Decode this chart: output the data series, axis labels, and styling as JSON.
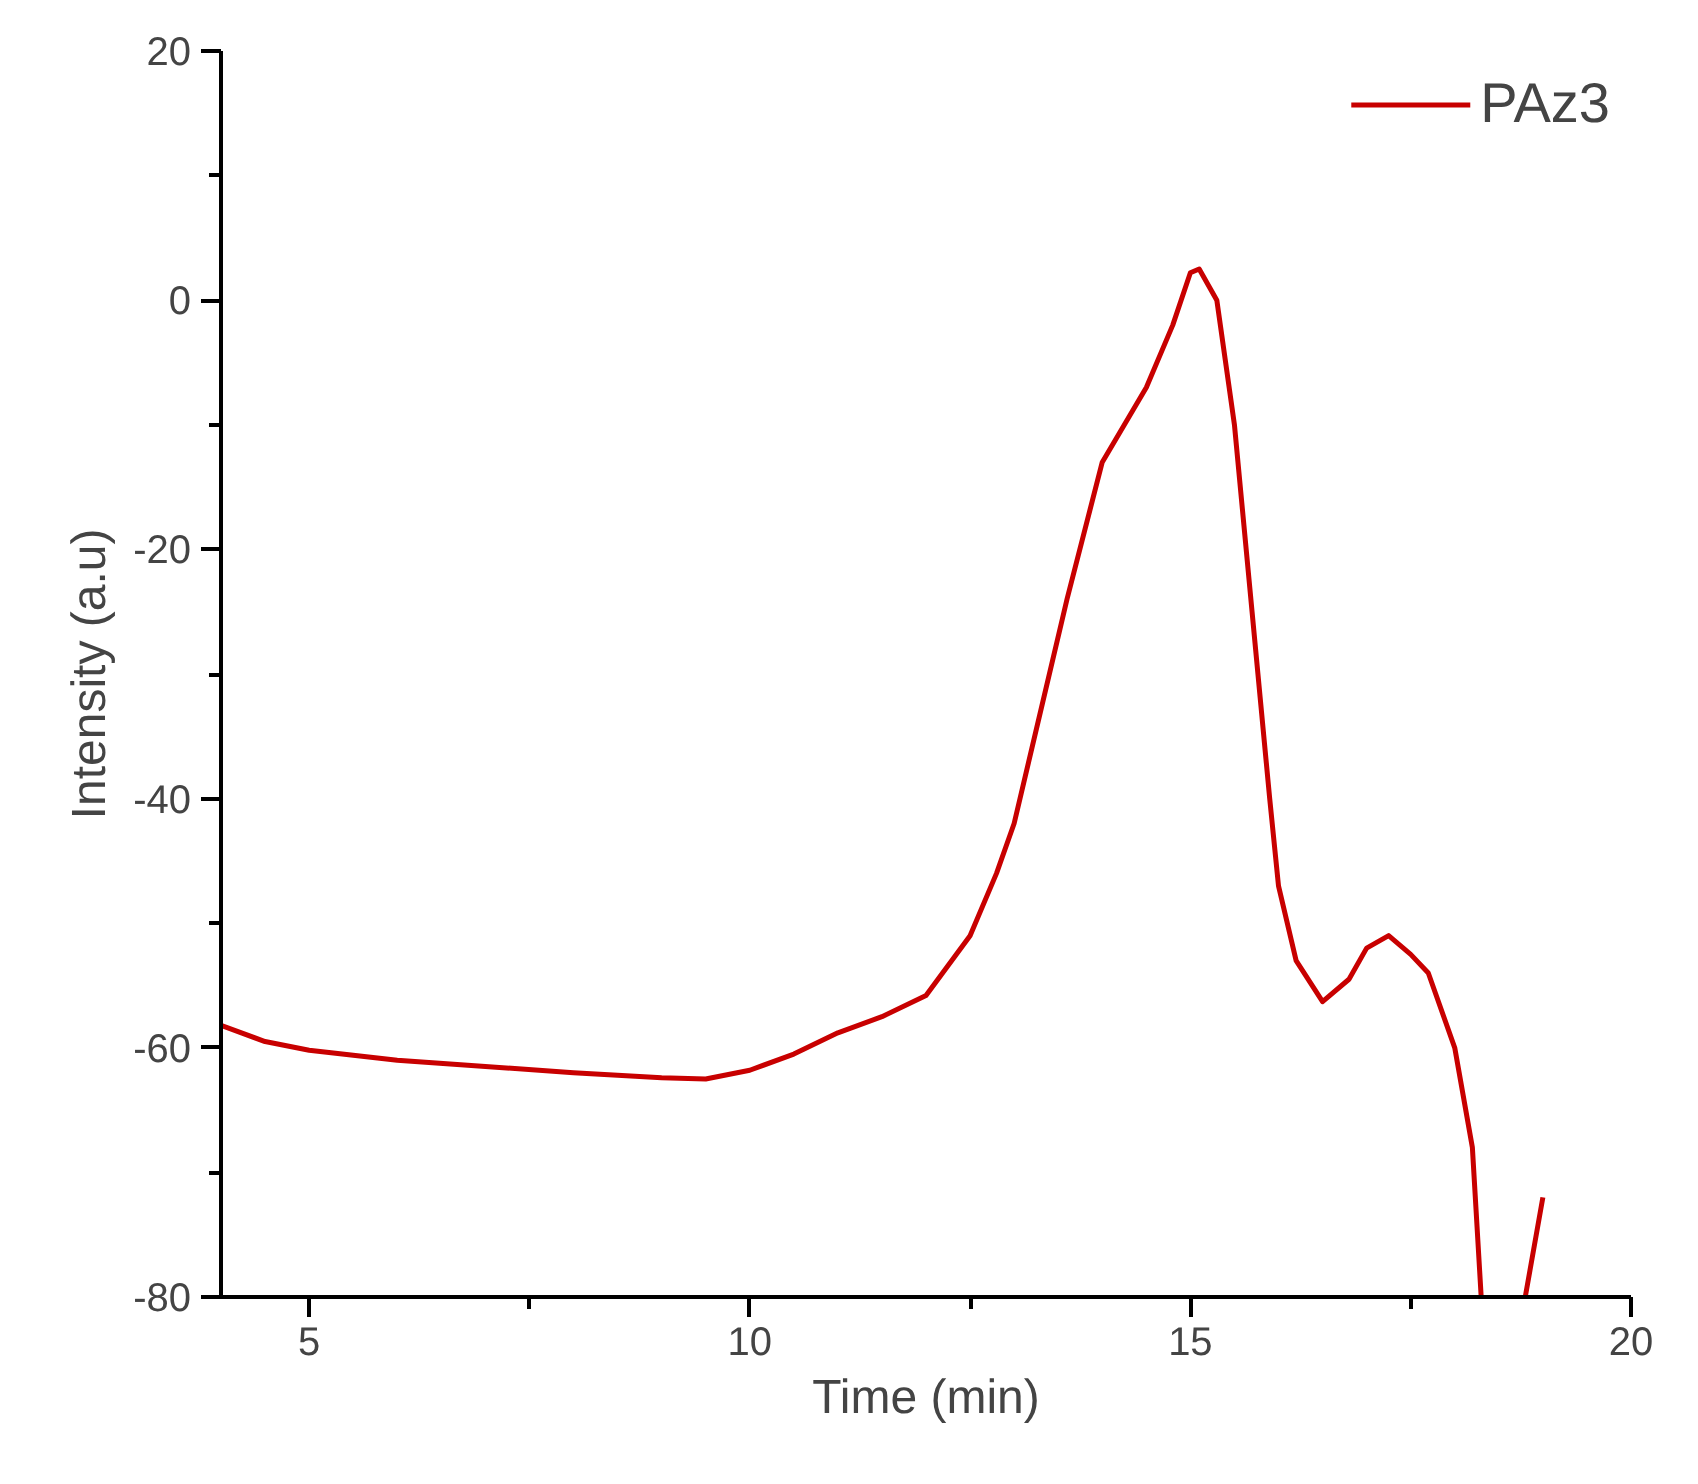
{
  "chart_data": {
    "type": "line",
    "xlabel": "Time (min)",
    "ylabel": "Intensity (a.u)",
    "xlim": [
      4,
      20
    ],
    "ylim": [
      -80,
      20
    ],
    "xticks": [
      5,
      10,
      15,
      20
    ],
    "yticks": [
      -80,
      -60,
      -40,
      -20,
      0,
      20
    ],
    "grid": false,
    "legend": "top right",
    "marker": "none",
    "line_style": "solid",
    "series": [
      {
        "name": "PAz3",
        "color": "#c80000",
        "x": [
          4,
          4.5,
          5,
          6,
          7,
          8,
          9,
          9.5,
          10,
          10.5,
          11,
          11.5,
          12,
          12.5,
          12.8,
          13,
          13.3,
          13.6,
          14,
          14.5,
          14.8,
          15,
          15.1,
          15.3,
          15.5,
          15.7,
          15.9,
          16,
          16.2,
          16.5,
          16.8,
          17,
          17.25,
          17.5,
          17.7,
          18,
          18.2,
          18.3,
          18.5,
          18.8,
          19
        ],
        "values": [
          -58.2,
          -59.5,
          -60.2,
          -61,
          -61.5,
          -62,
          -62.4,
          -62.5,
          -61.8,
          -60.5,
          -58.8,
          -57.5,
          -55.8,
          -51,
          -46,
          -42,
          -33,
          -24,
          -13,
          -7,
          -2,
          2.2,
          2.5,
          0,
          -10,
          -25,
          -40,
          -47,
          -53,
          -56.3,
          -54.5,
          -52,
          -51,
          -52.5,
          -54,
          -60,
          -68,
          -80,
          null,
          -80,
          -72
        ]
      }
    ]
  }
}
